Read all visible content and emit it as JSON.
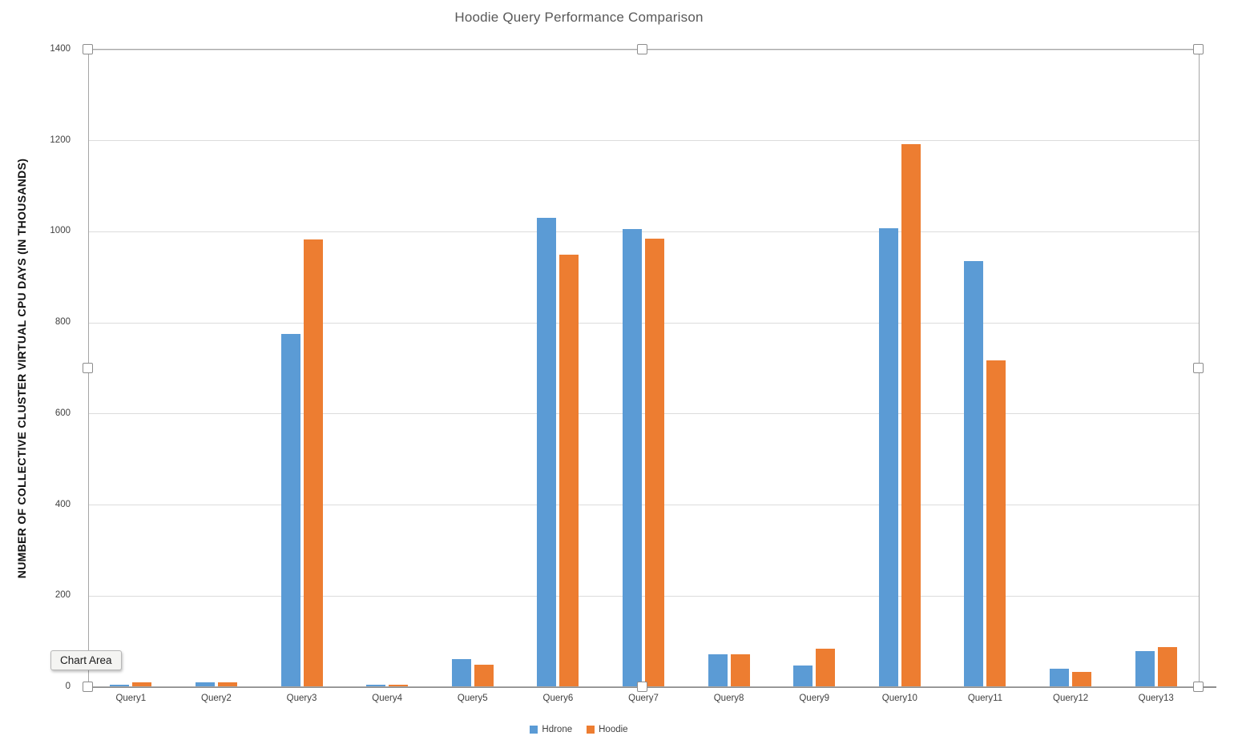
{
  "title": "Hoodie Query Performance Comparison",
  "tooltip": {
    "label": "Chart Area"
  },
  "colors": {
    "title_text": "#595959",
    "axis_text": "#404040",
    "gridline": "#dcdcdc",
    "axis_line": "#8e8e8e",
    "selection_frame": "#a6a6a6",
    "series_hdrone": "#5B9BD5",
    "series_hoodie": "#ED7D31"
  },
  "chart_data": {
    "type": "bar",
    "title": "Hoodie Query Performance Comparison",
    "categories": [
      "Query1",
      "Query2",
      "Query3",
      "Query4",
      "Query5",
      "Query6",
      "Query7",
      "Query8",
      "Query9",
      "Query10",
      "Query11",
      "Query12",
      "Query13"
    ],
    "series": [
      {
        "name": "Hdrone",
        "color": "#5B9BD5",
        "values": [
          6,
          10,
          775,
          5,
          62,
          1031,
          1006,
          73,
          47,
          1007,
          935,
          41,
          80
        ]
      },
      {
        "name": "Hoodie",
        "color": "#ED7D31",
        "values": [
          10,
          10,
          984,
          5,
          49,
          950,
          985,
          73,
          85,
          1193,
          717,
          33,
          88
        ]
      }
    ],
    "xlabel": "",
    "ylabel": "NUMBER OF COLLECTIVE CLUSTER VIRTUAL CPU DAYS (IN THOUSANDS)",
    "ylim": [
      0,
      1400
    ],
    "yticks": [
      0,
      200,
      400,
      600,
      800,
      1000,
      1200,
      1400
    ],
    "grid": "horizontal-on",
    "legend_position": "bottom-center",
    "selection_state": "chart-selected"
  }
}
